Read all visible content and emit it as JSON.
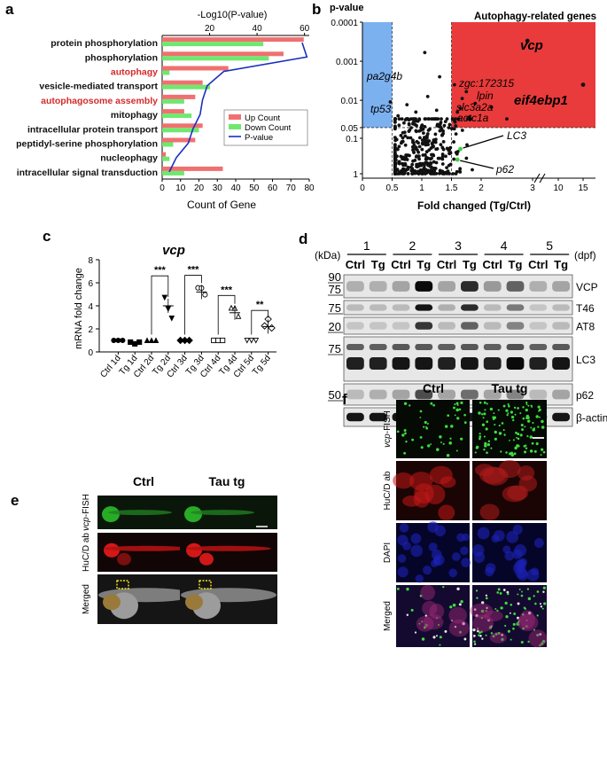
{
  "panels": {
    "a": {
      "letter": "a",
      "top_axis_label": "-Log10(P-value)",
      "top_ticks": [
        "20",
        "40",
        "60"
      ],
      "bottom_ticks": [
        "0",
        "10",
        "20",
        "30",
        "40",
        "50",
        "60",
        "70",
        "80"
      ],
      "xlabel": "Count of Gene",
      "legend": [
        "Up Count",
        "Down Count",
        "P-value"
      ],
      "colors": {
        "up": "#f07070",
        "down": "#6fe86f",
        "pvalue": "#1a2fc0",
        "highlight": "#d42b2b"
      }
    },
    "b": {
      "letter": "b",
      "y_title": "p-value",
      "box_title": "Autophagy-related genes",
      "y_ticks": [
        "0.0001",
        "0.001",
        "0.01",
        "0.05",
        "0.1",
        "1"
      ],
      "x_ticks": [
        "0",
        "0.5",
        "1",
        "1.5",
        "2",
        "3",
        "10",
        "15"
      ],
      "xlabel": "Fold changed (Tg/Ctrl)",
      "labels_blue": [
        "pa2g4b",
        "tp53"
      ],
      "labels_red": [
        "zgc:172315",
        "lpin",
        "slc3a2a",
        "actc1a"
      ],
      "label_vcp": "vcp",
      "label_eif": "eif4ebp1",
      "label_lc3": "LC3",
      "label_p62": "p62"
    },
    "c": {
      "letter": "c",
      "title": "vcp",
      "ylabel": "mRNA fold change",
      "y_ticks": [
        "0",
        "2",
        "4",
        "6",
        "8"
      ],
      "categories": [
        "Ctrl 1d",
        "Tg 1d",
        "Ctrl 2d",
        "Tg 2d",
        "Ctrl 3d",
        "Tg 3d",
        "Ctrl 4d",
        "Tg 4d",
        "Ctrl 5d",
        "Tg 5d"
      ],
      "sig": [
        "***",
        "***",
        "***",
        "**"
      ]
    },
    "d": {
      "letter": "d",
      "kda": "(kDa)",
      "dpf": "(dpf)",
      "days": [
        "1",
        "2",
        "3",
        "4",
        "5"
      ],
      "lane_labels": [
        "Ctrl",
        "Tg"
      ],
      "markers": [
        "90",
        "75",
        "75",
        "20",
        "75",
        "50"
      ],
      "bands": [
        "VCP",
        "T46",
        "AT8",
        "LC3",
        "p62",
        "β-actin"
      ]
    },
    "e": {
      "letter": "e",
      "cols": [
        "Ctrl",
        "Tau  tg"
      ],
      "rows": [
        "vcp-FISH",
        "HuC/D ab",
        "Merged"
      ],
      "row_vcp": "vcp",
      "row_vcp_rest": "-FISH"
    },
    "f": {
      "letter": "f",
      "cols": [
        "Ctrl",
        "Tau  tg"
      ],
      "rows": [
        "vcp-FISH",
        "HuC/D ab",
        "DAPI",
        "Merged"
      ],
      "row_vcp": "vcp",
      "row_vcp_rest": "-FISH"
    }
  },
  "chart_data": [
    {
      "type": "bar",
      "panel": "a",
      "categories": [
        "protein phosphorylation",
        "phosphorylation",
        "autophagy",
        "vesicle-mediated transport",
        "autophagosome assembly",
        "mitophagy",
        "intracellular protein transport",
        "peptidyl-serine phosphorylation",
        "nucleophagy",
        "intracellular signal transduction"
      ],
      "highlighted": [
        "autophagy",
        "autophagosome assembly"
      ],
      "series": [
        {
          "name": "Up Count",
          "values": [
            77,
            66,
            36,
            22,
            18,
            12,
            22,
            18,
            2,
            33
          ]
        },
        {
          "name": "Down Count",
          "values": [
            55,
            58,
            4,
            26,
            12,
            16,
            20,
            6,
            4,
            12
          ]
        },
        {
          "name": "P-value",
          "values": [
            59,
            61,
            26,
            19,
            17,
            16,
            13,
            11,
            6,
            3
          ]
        }
      ],
      "xlabel": "Count of Gene",
      "x2label": "-Log10(P-value)",
      "xlim": [
        0,
        80
      ],
      "x2lim": [
        0,
        62
      ]
    },
    {
      "type": "scatter",
      "panel": "b",
      "xlabel": "Fold changed (Tg/Ctrl)",
      "ylabel": "p-value",
      "y_scale": "log (reversed)",
      "highlighted_points": [
        {
          "label": "vcp",
          "x": 2.9,
          "y": 0.0003
        },
        {
          "label": "eif4ebp1",
          "x": 15,
          "y": 0.004
        },
        {
          "label": "LC3",
          "x": 1.65,
          "y": 0.2
        },
        {
          "label": "p62",
          "x": 1.6,
          "y": 0.4
        }
      ]
    },
    {
      "type": "scatter",
      "panel": "c",
      "title": "vcp",
      "ylabel": "mRNA fold change",
      "categories": [
        "Ctrl 1d",
        "Tg 1d",
        "Ctrl 2d",
        "Tg 2d",
        "Ctrl 3d",
        "Tg 3d",
        "Ctrl 4d",
        "Tg 4d",
        "Ctrl 5d",
        "Tg 5d"
      ],
      "means": [
        1.0,
        0.8,
        1.0,
        4.0,
        1.0,
        5.2,
        1.0,
        3.4,
        1.0,
        2.2
      ],
      "ylim": [
        0,
        8
      ]
    }
  ]
}
